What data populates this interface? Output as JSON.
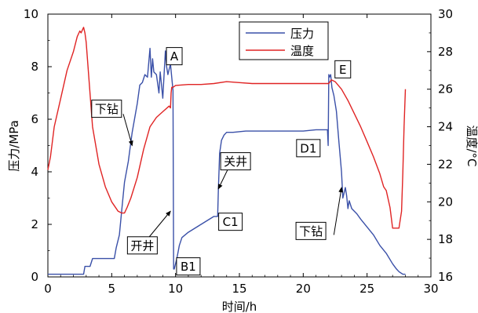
{
  "chart_data": {
    "type": "line",
    "xlabel": "时间/h",
    "ylabel_left": "压力/MPa",
    "ylabel_right": "温度/°C",
    "xlim": [
      0,
      30
    ],
    "ylim_left": [
      0,
      10
    ],
    "ylim_right": [
      16,
      30
    ],
    "x_ticks": [
      "0",
      "5",
      "10",
      "15",
      "20",
      "25",
      "30"
    ],
    "y_left_ticks": [
      "0",
      "2",
      "4",
      "6",
      "8",
      "10"
    ],
    "y_right_ticks": [
      "16",
      "18",
      "20",
      "22",
      "24",
      "26",
      "28",
      "30"
    ],
    "legend": {
      "placement": "top-center",
      "entries": [
        {
          "label": "压力",
          "color": "#3a50a8"
        },
        {
          "label": "温度",
          "color": "#e02424"
        }
      ]
    },
    "series": [
      {
        "name": "压力",
        "axis": "left",
        "color": "#3a50a8",
        "x": [
          0,
          1.5,
          2.8,
          2.9,
          3.3,
          3.5,
          5.2,
          5.35,
          5.6,
          5.8,
          6.0,
          6.3,
          6.6,
          7.0,
          7.2,
          7.4,
          7.6,
          7.8,
          8.0,
          8.1,
          8.2,
          8.3,
          8.5,
          8.7,
          8.8,
          9.0,
          9.2,
          9.3,
          9.4,
          9.5,
          9.6,
          9.7,
          9.8,
          9.85,
          9.9,
          10.1,
          10.3,
          10.5,
          11.0,
          12.0,
          13.0,
          13.3,
          13.35,
          13.45,
          13.6,
          13.8,
          14.0,
          14.5,
          15.5,
          17,
          19,
          20,
          21,
          21.9,
          21.95,
          22.0,
          22.05,
          22.15,
          22.25,
          22.4,
          22.6,
          22.8,
          23.0,
          23.1,
          23.2,
          23.3,
          23.4,
          23.5,
          23.6,
          23.8,
          24.0,
          24.2,
          24.5,
          25.0,
          25.5,
          26.0,
          26.5,
          27.0,
          27.3,
          27.5,
          27.8,
          28.0
        ],
        "values": [
          0.1,
          0.1,
          0.1,
          0.4,
          0.4,
          0.7,
          0.7,
          1.1,
          1.6,
          2.6,
          3.6,
          4.4,
          5.5,
          6.6,
          7.3,
          7.4,
          7.7,
          7.6,
          8.7,
          7.6,
          8.3,
          7.8,
          7.7,
          7.0,
          7.8,
          6.8,
          8.6,
          8.0,
          7.7,
          7.9,
          8.1,
          7.6,
          7.1,
          0.3,
          0.3,
          0.7,
          1.2,
          1.5,
          1.7,
          2.0,
          2.3,
          2.3,
          3.3,
          4.7,
          5.2,
          5.4,
          5.5,
          5.5,
          5.55,
          5.55,
          5.55,
          5.55,
          5.6,
          5.6,
          5.0,
          7.7,
          7.6,
          7.7,
          7.2,
          6.9,
          6.3,
          5.1,
          4.0,
          3.0,
          3.2,
          3.4,
          3.1,
          2.6,
          2.9,
          2.6,
          2.5,
          2.4,
          2.2,
          1.9,
          1.6,
          1.2,
          0.9,
          0.5,
          0.3,
          0.2,
          0.1,
          0.1
        ]
      },
      {
        "name": "温度",
        "axis": "right",
        "color": "#e02424",
        "x": [
          0,
          0.2,
          0.5,
          1.0,
          1.5,
          2.0,
          2.3,
          2.5,
          2.6,
          2.8,
          2.9,
          3.0,
          3.5,
          4.0,
          4.5,
          5.0,
          5.5,
          5.8,
          6.0,
          6.2,
          6.5,
          7.0,
          7.5,
          8.0,
          8.5,
          9.0,
          9.5,
          9.6,
          9.65,
          9.7,
          9.75,
          9.8,
          10,
          11,
          12,
          13,
          14,
          15,
          16,
          17,
          18,
          19,
          20,
          21,
          22,
          22.2,
          22.5,
          23,
          23.5,
          24,
          24.5,
          25,
          25.5,
          26,
          26.3,
          26.5,
          26.8,
          27,
          27.3,
          27.5,
          27.7,
          27.8,
          27.9,
          28.0
        ],
        "values": [
          21.7,
          22.4,
          24.0,
          25.5,
          27.0,
          28.0,
          28.8,
          29.1,
          29.0,
          29.3,
          29.0,
          28.5,
          24.0,
          22.0,
          20.8,
          20.0,
          19.5,
          19.4,
          19.4,
          19.7,
          20.2,
          21.3,
          22.8,
          24.0,
          24.5,
          24.8,
          25.1,
          25.0,
          25.8,
          26.1,
          26.1,
          26.1,
          26.2,
          26.25,
          26.25,
          26.3,
          26.4,
          26.35,
          26.3,
          26.3,
          26.3,
          26.3,
          26.3,
          26.3,
          26.3,
          26.5,
          26.4,
          26.0,
          25.4,
          24.7,
          24.0,
          23.2,
          22.4,
          21.5,
          20.8,
          20.6,
          19.7,
          18.6,
          18.6,
          18.6,
          19.5,
          21.5,
          24.0,
          26.0
        ]
      }
    ],
    "annotations": [
      {
        "label": "A",
        "x": 9.9,
        "y": 8.4
      },
      {
        "label": "E",
        "x": 23.1,
        "y": 7.9
      },
      {
        "label": "下钻",
        "x": 4.6,
        "y": 6.4
      },
      {
        "label": "D1",
        "x": 20.4,
        "y": 4.9
      },
      {
        "label": "关井",
        "x": 14.7,
        "y": 4.4
      },
      {
        "label": "C1",
        "x": 14.3,
        "y": 2.1
      },
      {
        "label": "开井",
        "x": 7.4,
        "y": 1.2
      },
      {
        "label": "B1",
        "x": 11.0,
        "y": 0.4
      },
      {
        "label": "下钻",
        "x": 20.6,
        "y": 1.75
      }
    ],
    "arrows": [
      {
        "from": [
          5.9,
          6.2
        ],
        "to": [
          6.6,
          5.0
        ]
      },
      {
        "from": [
          7.9,
          1.5
        ],
        "to": [
          9.6,
          2.5
        ]
      },
      {
        "from": [
          14.1,
          4.1
        ],
        "to": [
          13.35,
          3.35
        ]
      },
      {
        "from": [
          22.4,
          1.6
        ],
        "to": [
          23.0,
          3.4
        ]
      }
    ]
  }
}
